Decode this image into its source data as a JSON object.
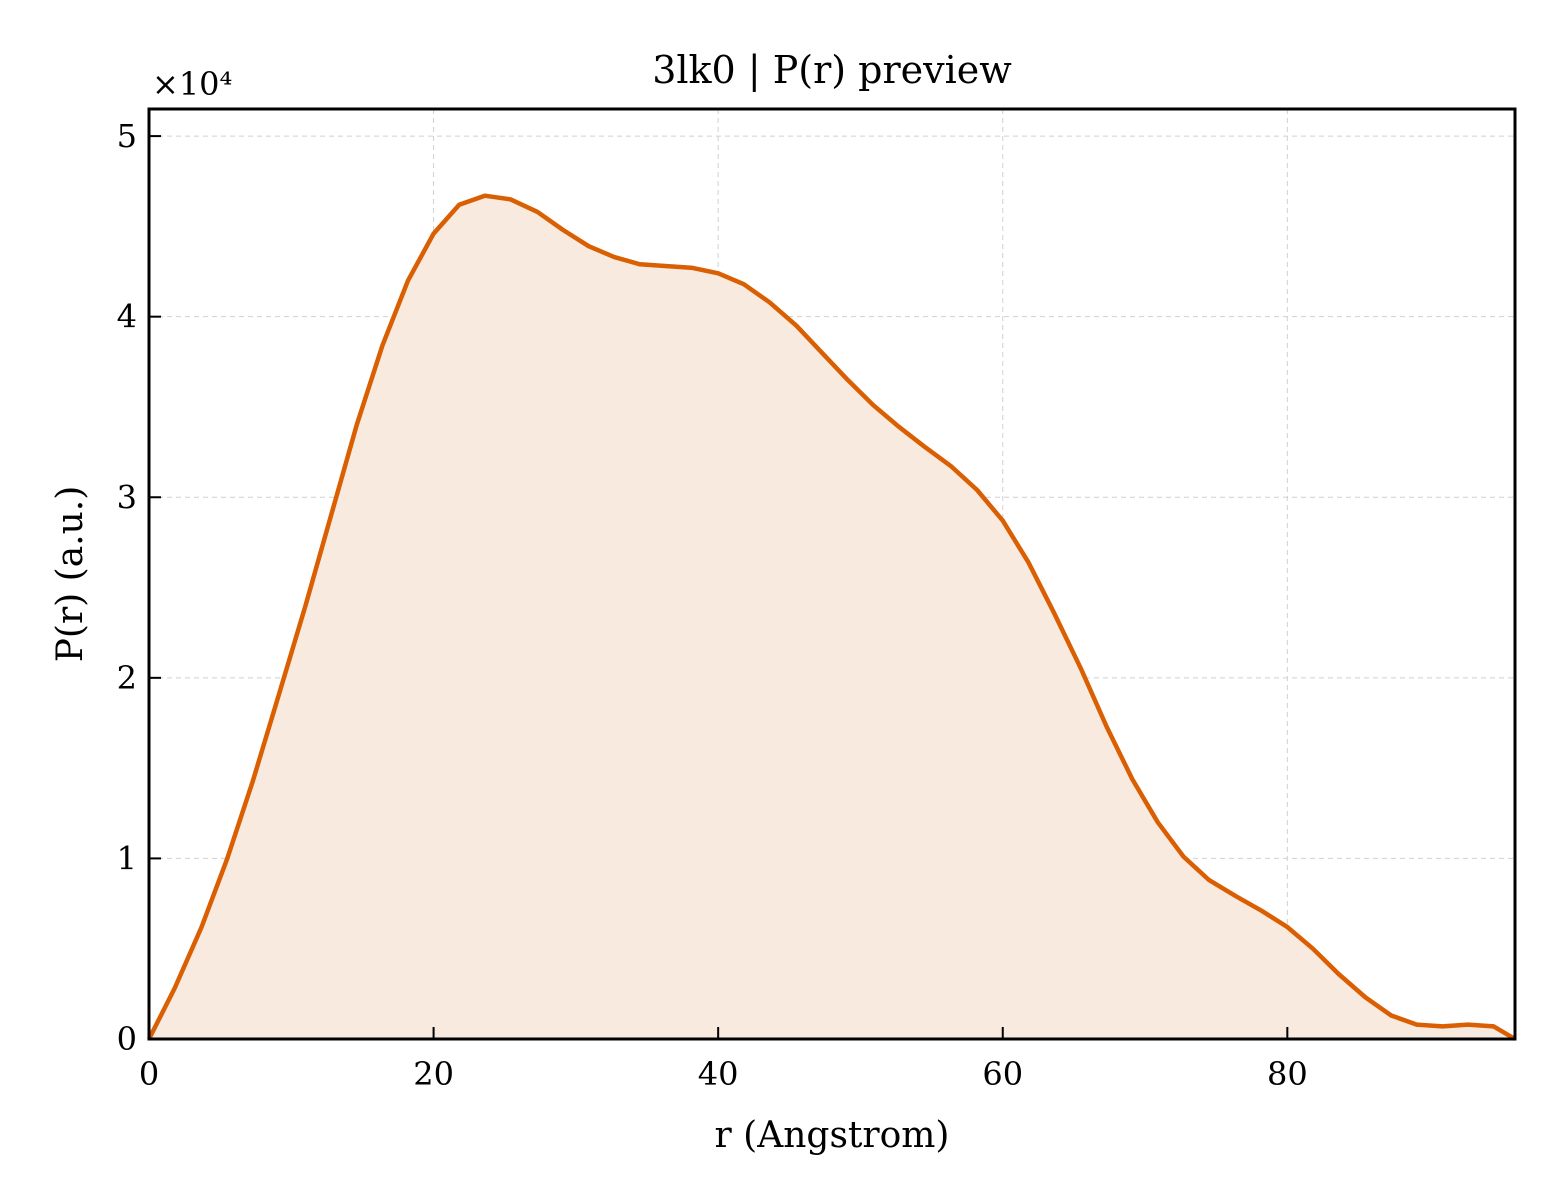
{
  "chart_data": {
    "type": "area",
    "title": "3lk0 | P(r) preview",
    "xlabel": "r (Angstrom)",
    "ylabel": "P(r) (a.u.)",
    "y_multiplier_label": "×10⁴",
    "xlim": [
      0,
      96
    ],
    "ylim": [
      0,
      5.15
    ],
    "xticks": [
      0,
      20,
      40,
      60,
      80
    ],
    "yticks": [
      0,
      1,
      2,
      3,
      4,
      5
    ],
    "grid": true,
    "line_color": "#d95f02",
    "fill_color": "#f9eadf",
    "series": [
      {
        "x": [
          0,
          1.8,
          3.7,
          5.5,
          7.3,
          9.1,
          11.0,
          12.8,
          14.6,
          16.4,
          18.2,
          20.0,
          21.8,
          23.6,
          25.4,
          27.3,
          29.1,
          30.9,
          32.7,
          34.5,
          36.4,
          38.2,
          40.0,
          41.8,
          43.6,
          45.5,
          47.3,
          49.1,
          50.9,
          52.7,
          54.5,
          56.4,
          58.2,
          60.0,
          61.8,
          63.6,
          65.5,
          67.3,
          69.1,
          70.9,
          72.7,
          74.5,
          76.4,
          78.2,
          80.0,
          81.8,
          83.6,
          85.5,
          87.3,
          89.1,
          90.9,
          92.7,
          94.5,
          96.0
        ],
        "y": [
          0.0,
          0.28,
          0.62,
          1.0,
          1.43,
          1.9,
          2.4,
          2.9,
          3.4,
          3.84,
          4.2,
          4.46,
          4.62,
          4.67,
          4.65,
          4.58,
          4.48,
          4.39,
          4.33,
          4.29,
          4.28,
          4.27,
          4.24,
          4.18,
          4.08,
          3.95,
          3.8,
          3.65,
          3.51,
          3.39,
          3.28,
          3.17,
          3.04,
          2.87,
          2.64,
          2.36,
          2.05,
          1.73,
          1.44,
          1.2,
          1.01,
          0.88,
          0.79,
          0.71,
          0.62,
          0.5,
          0.36,
          0.23,
          0.13,
          0.08,
          0.07,
          0.08,
          0.07,
          0.0
        ]
      }
    ]
  }
}
